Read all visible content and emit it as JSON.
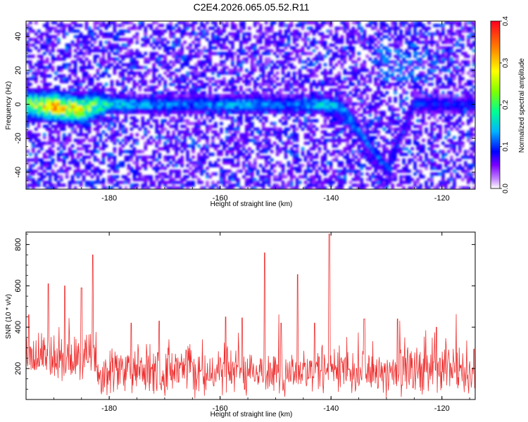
{
  "title": "C2E4.2026.065.05.52.R11",
  "colors": {
    "snr_line": "#ee3030",
    "spectrogram_base": "#ffffff",
    "frame": "#000000"
  },
  "chart_data": [
    {
      "type": "heatmap",
      "xlabel": "Height of straight line (km)",
      "ylabel": "Frequency (Hz)",
      "xlim": [
        -195,
        -114
      ],
      "ylim": [
        -50,
        49
      ],
      "xticks": [
        -180,
        -160,
        -140,
        -120
      ],
      "yticks": [
        -40,
        -20,
        0,
        20,
        40
      ],
      "colorbar": {
        "label": "Normalized spectral amplitude",
        "range": [
          0.0,
          0.4
        ],
        "ticks": [
          0.0,
          0.1,
          0.2,
          0.3,
          0.4
        ],
        "colormap": [
          "#ffffff",
          "#7a00ff",
          "#0000ff",
          "#00c8ff",
          "#00ff80",
          "#80ff00",
          "#ffff00",
          "#ff8000",
          "#ff0000"
        ]
      },
      "ridge": [
        {
          "x": -195,
          "y": 0,
          "amp": 0.22
        },
        {
          "x": -190,
          "y": -1,
          "amp": 0.32
        },
        {
          "x": -185,
          "y": -3,
          "amp": 0.28
        },
        {
          "x": -182,
          "y": 0,
          "amp": 0.2
        },
        {
          "x": -175,
          "y": 0,
          "amp": 0.12
        },
        {
          "x": -170,
          "y": 0,
          "amp": 0.11
        },
        {
          "x": -165,
          "y": 0,
          "amp": 0.1
        },
        {
          "x": -160,
          "y": 0,
          "amp": 0.12
        },
        {
          "x": -155,
          "y": 0,
          "amp": 0.13
        },
        {
          "x": -150,
          "y": 0,
          "amp": 0.1
        },
        {
          "x": -145,
          "y": 0,
          "amp": 0.11
        },
        {
          "x": -141,
          "y": 0,
          "amp": 0.16
        },
        {
          "x": -138,
          "y": -2,
          "amp": 0.12
        },
        {
          "x": -136,
          "y": -10,
          "amp": 0.11
        },
        {
          "x": -134,
          "y": -20,
          "amp": 0.1
        },
        {
          "x": -132,
          "y": -30,
          "amp": 0.08
        },
        {
          "x": -130,
          "y": -38,
          "amp": 0.06
        },
        {
          "x": -125,
          "y": 0,
          "amp": 0.08
        },
        {
          "x": -120,
          "y": 0,
          "amp": 0.07
        },
        {
          "x": -114,
          "y": 0,
          "amp": 0.07
        }
      ]
    },
    {
      "type": "line",
      "xlabel": "Height of straight line (km)",
      "ylabel": "SNR (10 * v/v)",
      "xlim": [
        -195,
        -114
      ],
      "ylim": [
        50,
        860
      ],
      "xticks": [
        -180,
        -160,
        -140,
        -120
      ],
      "yticks": [
        200,
        400,
        600,
        800
      ],
      "series": [
        {
          "baseline": 190,
          "noise_amplitude": 120,
          "peaks": [
            {
              "x": -194.5,
              "y": 460
            },
            {
              "x": -191,
              "y": 610
            },
            {
              "x": -188,
              "y": 600
            },
            {
              "x": -185,
              "y": 590
            },
            {
              "x": -183,
              "y": 750
            },
            {
              "x": -176,
              "y": 420
            },
            {
              "x": -171,
              "y": 430
            },
            {
              "x": -159,
              "y": 450
            },
            {
              "x": -156,
              "y": 445
            },
            {
              "x": -152,
              "y": 760
            },
            {
              "x": -149,
              "y": 420
            },
            {
              "x": -146,
              "y": 655
            },
            {
              "x": -143,
              "y": 420
            },
            {
              "x": -140.3,
              "y": 850
            },
            {
              "x": -134,
              "y": 440
            },
            {
              "x": -128,
              "y": 440
            },
            {
              "x": -121,
              "y": 400
            }
          ]
        }
      ]
    }
  ]
}
